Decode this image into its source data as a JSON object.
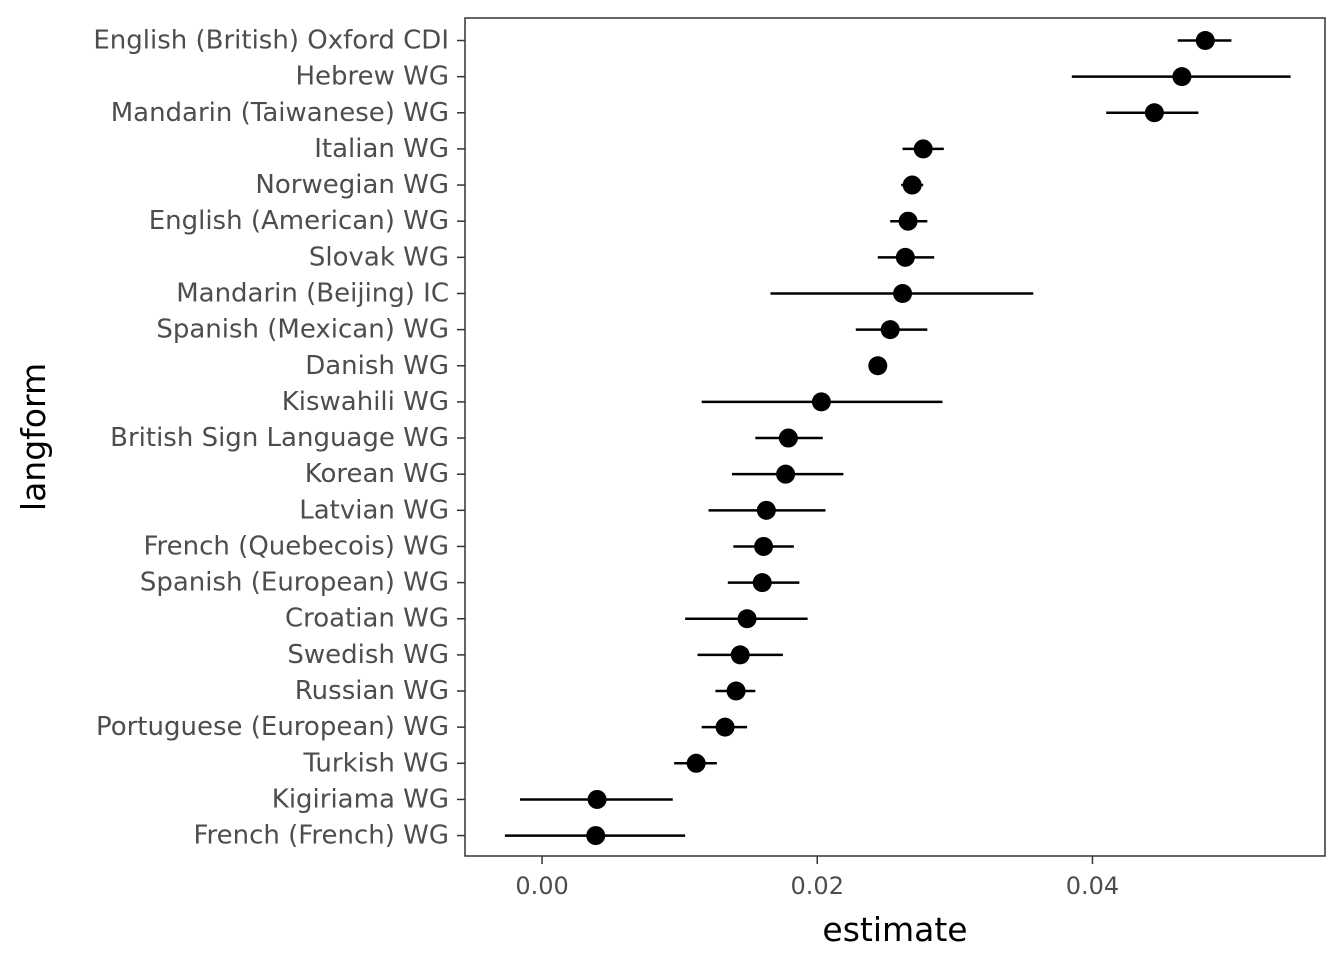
{
  "chart_data": {
    "type": "scatter",
    "subtype": "point-range",
    "title": "",
    "xlabel": "estimate",
    "ylabel": "langform",
    "xlim": [
      -0.0056,
      0.0569
    ],
    "xticks": [
      0.0,
      0.02,
      0.04
    ],
    "xtick_labels": [
      "0.00",
      "0.02",
      "0.04"
    ],
    "grid": false,
    "legend": "none",
    "point_color": "#000000",
    "categories": [
      "English (British) Oxford CDI",
      "Hebrew WG",
      "Mandarin (Taiwanese) WG",
      "Italian WG",
      "Norwegian WG",
      "English (American) WG",
      "Slovak WG",
      "Mandarin (Beijing) IC",
      "Spanish (Mexican) WG",
      "Danish WG",
      "Kiswahili WG",
      "British Sign Language WG",
      "Korean WG",
      "Latvian WG",
      "French (Quebecois) WG",
      "Spanish (European) WG",
      "Croatian WG",
      "Swedish WG",
      "Russian WG",
      "Portuguese (European) WG",
      "Turkish WG",
      "Kigiriama WG",
      "French (French) WG"
    ],
    "estimate": [
      0.0482,
      0.0465,
      0.0445,
      0.0277,
      0.0269,
      0.0266,
      0.0264,
      0.0262,
      0.0253,
      0.0244,
      0.0203,
      0.0179,
      0.0177,
      0.0163,
      0.0161,
      0.016,
      0.0149,
      0.0144,
      0.0141,
      0.0133,
      0.0112,
      0.004,
      0.0039
    ],
    "lower": [
      0.0462,
      0.0385,
      0.041,
      0.0262,
      0.0261,
      0.0253,
      0.0244,
      0.0166,
      0.0228,
      0.0239,
      0.0116,
      0.0155,
      0.0138,
      0.0121,
      0.0139,
      0.0135,
      0.0104,
      0.0113,
      0.0126,
      0.0116,
      0.0096,
      -0.0016,
      -0.0027
    ],
    "upper": [
      0.0501,
      0.0544,
      0.0477,
      0.0292,
      0.0277,
      0.028,
      0.0285,
      0.0357,
      0.028,
      0.025,
      0.0291,
      0.0204,
      0.0219,
      0.0206,
      0.0183,
      0.0187,
      0.0193,
      0.0175,
      0.0155,
      0.0149,
      0.0127,
      0.0095,
      0.0104
    ]
  }
}
